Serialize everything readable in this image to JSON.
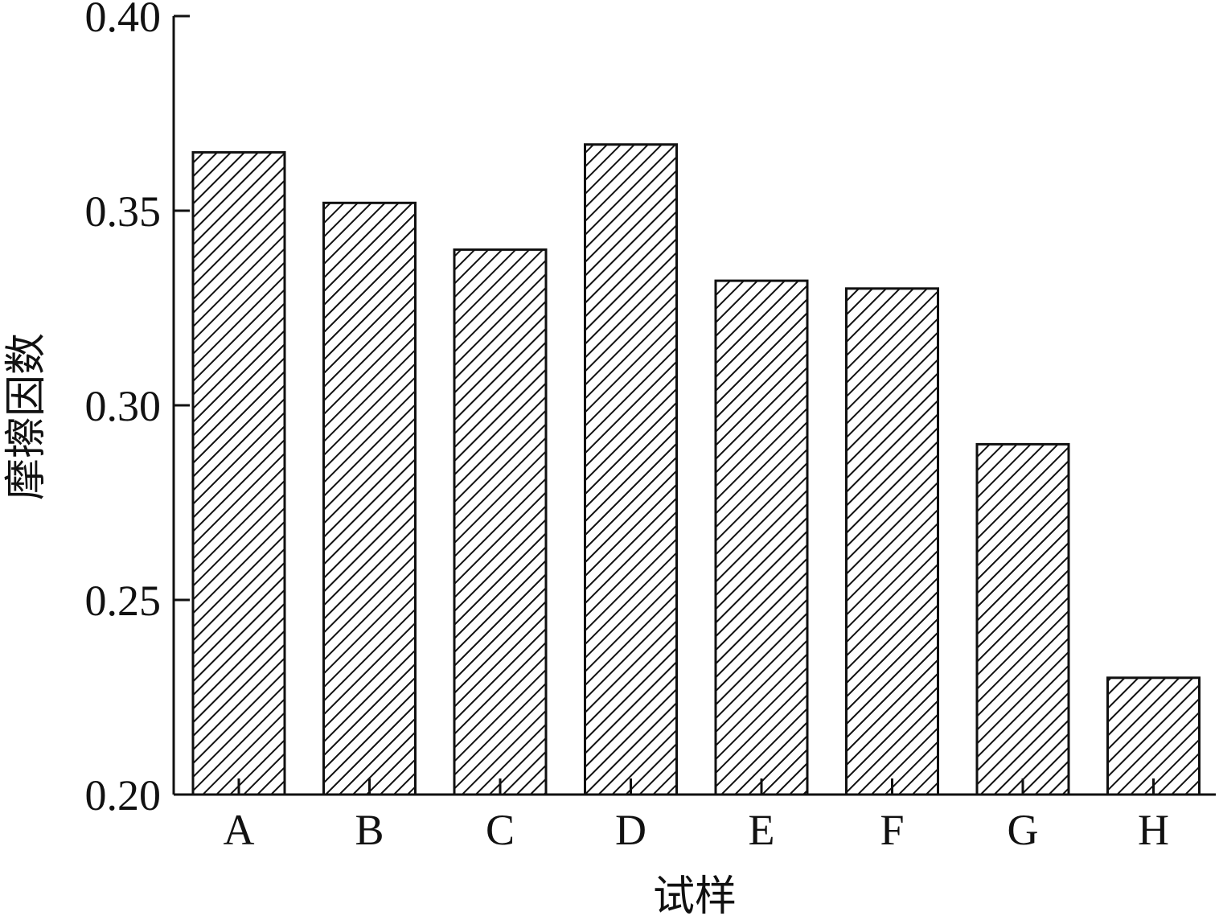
{
  "chart_data": {
    "type": "bar",
    "title": "",
    "xlabel": "试样",
    "ylabel": "摩擦因数",
    "categories": [
      "A",
      "B",
      "C",
      "D",
      "E",
      "F",
      "G",
      "H"
    ],
    "values": [
      0.365,
      0.352,
      0.34,
      0.367,
      0.332,
      0.33,
      0.29,
      0.23
    ],
    "ylim": [
      0.2,
      0.4
    ],
    "yticks": [
      "0.20",
      "0.25",
      "0.30",
      "0.35",
      "0.40"
    ],
    "grid": false,
    "legend": "none",
    "bar_fill": "diagonal-hatch",
    "colors": {
      "stroke": "#111111",
      "background": "#ffffff"
    }
  }
}
